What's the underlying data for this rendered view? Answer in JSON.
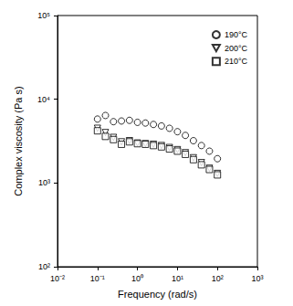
{
  "chart_data": {
    "type": "scatter",
    "x_label": "Frequency (rad/s)",
    "y_label": "Complex viscosity (Pa s)",
    "log": true,
    "grid": false,
    "legend": "top-right",
    "xlim": [
      0.01,
      1000
    ],
    "ylim": [
      100,
      100000
    ],
    "xticks": [
      {
        "value": 0.01,
        "label": "10⁻²"
      },
      {
        "value": 0.1,
        "label": "10⁻¹"
      },
      {
        "value": 1,
        "label": "10⁰"
      },
      {
        "value": 10,
        "label": "10¹"
      },
      {
        "value": 100,
        "label": "10²"
      },
      {
        "value": 1000,
        "label": "10³"
      }
    ],
    "yticks": [
      {
        "value": 100,
        "label": "10²"
      },
      {
        "value": 1000,
        "label": "10³"
      },
      {
        "value": 10000,
        "label": "10⁴"
      },
      {
        "value": 100000,
        "label": "10⁵"
      }
    ],
    "x": [
      0.1,
      0.158,
      0.251,
      0.398,
      0.631,
      1,
      1.58,
      2.51,
      3.98,
      6.31,
      10,
      15.8,
      25.1,
      39.8,
      63.1,
      100
    ],
    "series": [
      {
        "name": "190°C",
        "color": "#000000",
        "marker": "circle",
        "values": [
          5800,
          6400,
          5400,
          5500,
          5600,
          5300,
          5200,
          5000,
          4800,
          4500,
          4100,
          3700,
          3200,
          2800,
          2400,
          1950
        ]
      },
      {
        "name": "200°C",
        "color": "#000000",
        "marker": "triangle-down",
        "values": [
          4500,
          4000,
          3500,
          3100,
          3200,
          3000,
          2950,
          2900,
          2800,
          2650,
          2500,
          2300,
          2000,
          1750,
          1500,
          1300
        ]
      },
      {
        "name": "210°C",
        "color": "#000000",
        "marker": "square",
        "values": [
          4200,
          3600,
          3300,
          2900,
          3100,
          2950,
          2900,
          2800,
          2700,
          2550,
          2400,
          2200,
          1900,
          1650,
          1450,
          1250
        ]
      }
    ]
  }
}
